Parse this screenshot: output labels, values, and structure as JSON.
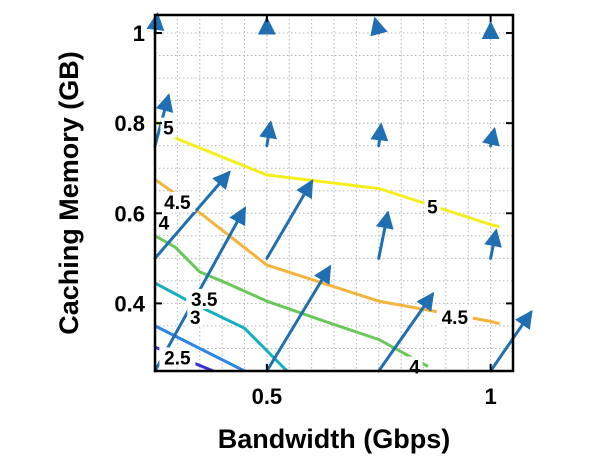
{
  "chart_data": {
    "type": "contour",
    "xlabel": "Bandwidth (Gbps)",
    "ylabel": "Caching Memory (GB)",
    "xlim": [
      0.25,
      1.05
    ],
    "ylim": [
      0.25,
      1.04
    ],
    "x_ticks": [
      {
        "value": 0.5,
        "label": "0.5"
      },
      {
        "value": 1.0,
        "label": "1"
      }
    ],
    "y_ticks": [
      {
        "value": 0.4,
        "label": "0.4"
      },
      {
        "value": 0.6,
        "label": "0.6"
      },
      {
        "value": 0.8,
        "label": "0.8"
      },
      {
        "value": 1.0,
        "label": "1"
      }
    ],
    "grid": true,
    "grid_style": "dotted",
    "contours": [
      {
        "level": "2.5",
        "color": "#3b2fd6",
        "points": [
          [
            0.25,
            0.303
          ],
          [
            0.38,
            0.25
          ]
        ],
        "labels": [
          {
            "text": "2.5",
            "x": 0.3,
            "y": 0.28
          }
        ]
      },
      {
        "level": "3",
        "color": "#2d86e6",
        "points": [
          [
            0.25,
            0.35
          ],
          [
            0.45,
            0.25
          ]
        ],
        "labels": [
          {
            "text": "3",
            "x": 0.34,
            "y": 0.37
          }
        ]
      },
      {
        "level": "3.5",
        "color": "#11b0bd",
        "points": [
          [
            0.25,
            0.445
          ],
          [
            0.335,
            0.4
          ],
          [
            0.45,
            0.345
          ],
          [
            0.545,
            0.25
          ]
        ],
        "labels": [
          {
            "text": "3.5",
            "x": 0.36,
            "y": 0.41
          }
        ]
      },
      {
        "level": "4",
        "color": "#6ac85b",
        "points": [
          [
            0.25,
            0.55
          ],
          [
            0.295,
            0.525
          ],
          [
            0.35,
            0.47
          ],
          [
            0.41,
            0.445
          ],
          [
            0.5,
            0.405
          ],
          [
            0.63,
            0.36
          ],
          [
            0.75,
            0.32
          ],
          [
            0.86,
            0.26
          ]
        ],
        "labels": [
          {
            "text": "4",
            "x": 0.27,
            "y": 0.58
          },
          {
            "text": "4",
            "x": 0.83,
            "y": 0.26
          }
        ]
      },
      {
        "level": "4.5",
        "color": "#f5b53c",
        "points": [
          [
            0.25,
            0.675
          ],
          [
            0.3,
            0.64
          ],
          [
            0.5,
            0.485
          ],
          [
            0.75,
            0.405
          ],
          [
            1.0,
            0.36
          ],
          [
            1.02,
            0.355
          ]
        ],
        "labels": [
          {
            "text": "4.5",
            "x": 0.3,
            "y": 0.625
          },
          {
            "text": "4.5",
            "x": 0.92,
            "y": 0.37
          }
        ]
      },
      {
        "level": "5",
        "color": "#f5ee1c",
        "points": [
          [
            0.25,
            0.805
          ],
          [
            0.3,
            0.765
          ],
          [
            0.5,
            0.685
          ],
          [
            0.75,
            0.655
          ],
          [
            1.0,
            0.575
          ],
          [
            1.02,
            0.57
          ]
        ],
        "labels": [
          {
            "text": "5",
            "x": 0.28,
            "y": 0.79
          },
          {
            "text": "5",
            "x": 0.87,
            "y": 0.615
          }
        ]
      }
    ],
    "vector_field": {
      "color": "#1f6fb2",
      "arrows": [
        {
          "x": 0.25,
          "y": 1.0,
          "dx": 0.005,
          "dy": 0.04
        },
        {
          "x": 0.5,
          "y": 1.0,
          "dx": 0.0,
          "dy": 0.03
        },
        {
          "x": 0.75,
          "y": 1.0,
          "dx": -0.008,
          "dy": 0.03
        },
        {
          "x": 1.0,
          "y": 1.0,
          "dx": 0.0,
          "dy": 0.02
        },
        {
          "x": 0.25,
          "y": 0.75,
          "dx": 0.03,
          "dy": 0.11
        },
        {
          "x": 0.5,
          "y": 0.75,
          "dx": 0.008,
          "dy": 0.05
        },
        {
          "x": 0.75,
          "y": 0.75,
          "dx": 0.005,
          "dy": 0.045
        },
        {
          "x": 1.0,
          "y": 0.75,
          "dx": 0.008,
          "dy": 0.035
        },
        {
          "x": 0.25,
          "y": 0.5,
          "dx": 0.165,
          "dy": 0.19
        },
        {
          "x": 0.5,
          "y": 0.5,
          "dx": 0.1,
          "dy": 0.17
        },
        {
          "x": 0.75,
          "y": 0.5,
          "dx": 0.02,
          "dy": 0.1
        },
        {
          "x": 1.0,
          "y": 0.5,
          "dx": 0.012,
          "dy": 0.06
        },
        {
          "x": 0.25,
          "y": 0.25,
          "dx": 0.2,
          "dy": 0.36
        },
        {
          "x": 0.5,
          "y": 0.25,
          "dx": 0.14,
          "dy": 0.23
        },
        {
          "x": 0.75,
          "y": 0.25,
          "dx": 0.12,
          "dy": 0.17
        },
        {
          "x": 1.0,
          "y": 0.25,
          "dx": 0.09,
          "dy": 0.13
        }
      ]
    }
  }
}
